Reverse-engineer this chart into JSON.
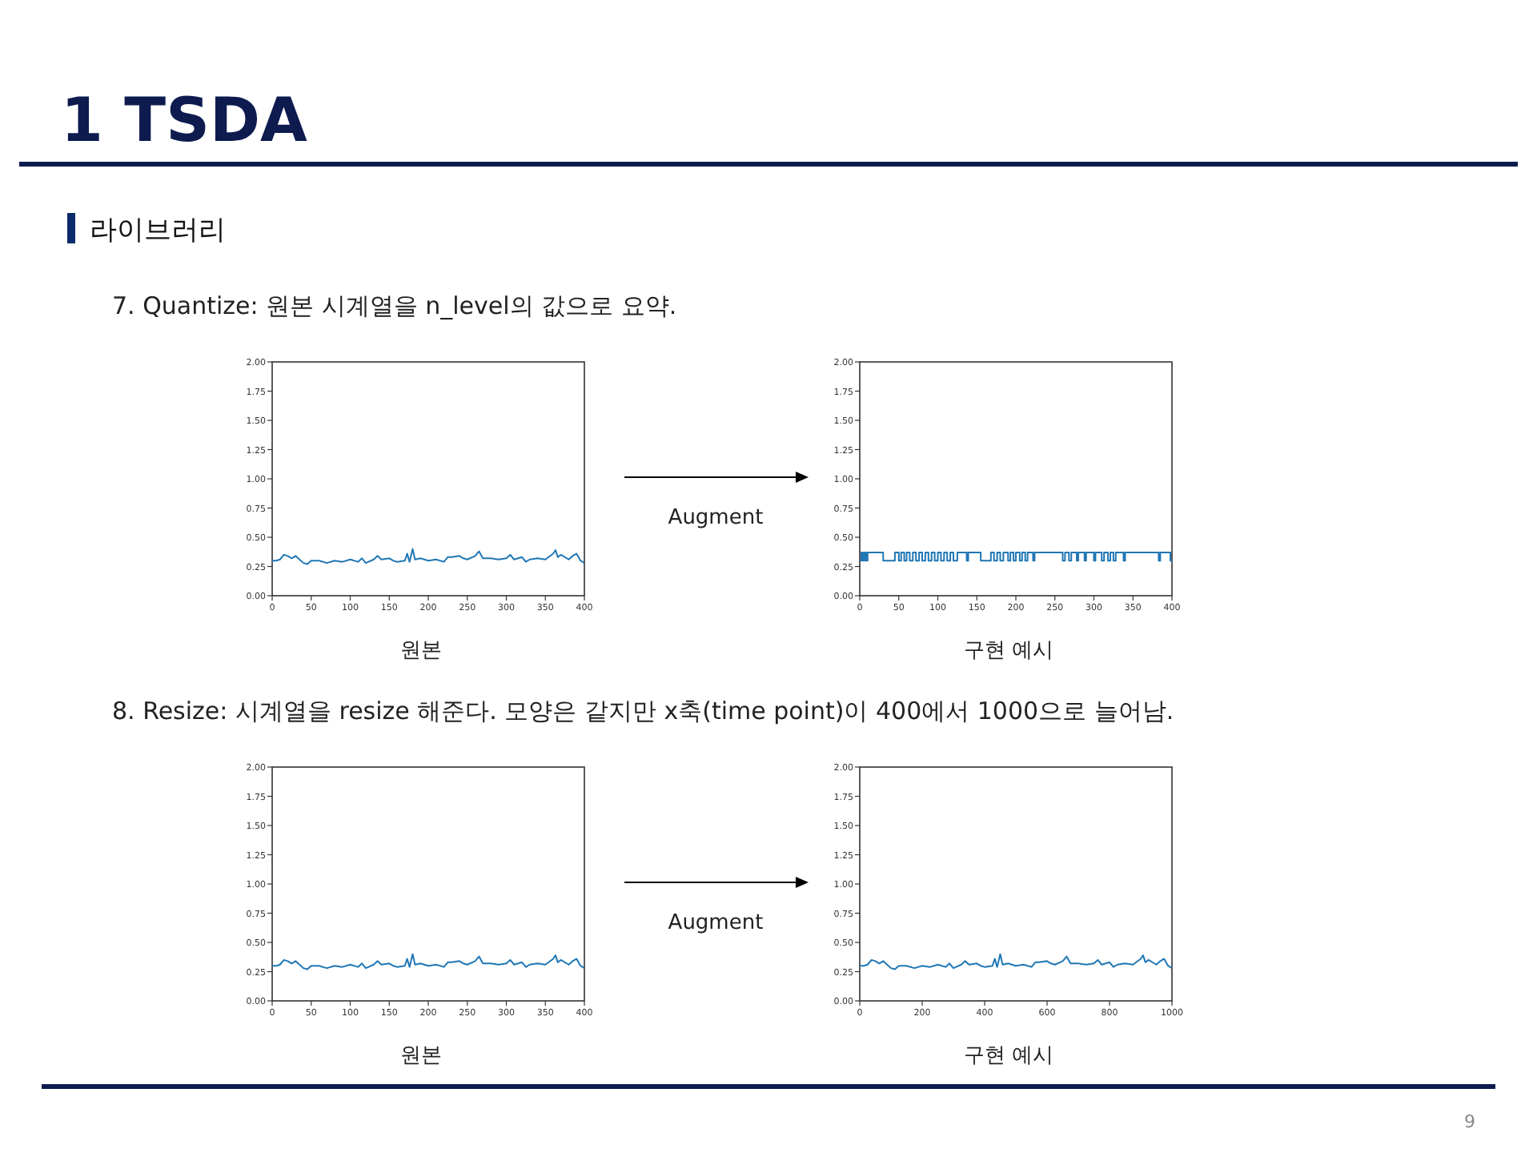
{
  "chart_data": [
    {
      "type": "line",
      "title": "1 TSDA",
      "subtitle": "라이브러리",
      "annotations": [
        "7. Quantize: 원본 시계열을 n_level의 값으로 요약."
      ],
      "xlabel": "원본",
      "x": [
        0,
        5,
        10,
        15,
        20,
        25,
        30,
        35,
        40,
        45,
        50,
        60,
        70,
        80,
        90,
        100,
        110,
        115,
        120,
        130,
        135,
        140,
        150,
        155,
        160,
        170,
        173,
        176,
        180,
        183,
        190,
        200,
        210,
        220,
        225,
        230,
        240,
        245,
        250,
        260,
        265,
        270,
        280,
        290,
        300,
        305,
        310,
        320,
        325,
        330,
        340,
        350,
        360,
        363,
        366,
        370,
        380,
        385,
        390,
        395,
        400
      ],
      "series": [
        {
          "color": "#1f77b4",
          "values": [
            0.3,
            0.3,
            0.31,
            0.35,
            0.34,
            0.32,
            0.34,
            0.31,
            0.28,
            0.27,
            0.3,
            0.3,
            0.28,
            0.3,
            0.29,
            0.31,
            0.29,
            0.32,
            0.28,
            0.31,
            0.34,
            0.31,
            0.32,
            0.3,
            0.29,
            0.3,
            0.36,
            0.29,
            0.4,
            0.31,
            0.32,
            0.3,
            0.31,
            0.29,
            0.33,
            0.33,
            0.34,
            0.32,
            0.31,
            0.34,
            0.38,
            0.32,
            0.32,
            0.31,
            0.32,
            0.35,
            0.31,
            0.33,
            0.29,
            0.31,
            0.32,
            0.31,
            0.36,
            0.39,
            0.33,
            0.35,
            0.31,
            0.34,
            0.36,
            0.3,
            0.28
          ]
        }
      ],
      "xlim": [
        0,
        400
      ],
      "xticks": [
        0,
        50,
        100,
        150,
        200,
        250,
        300,
        350,
        400
      ],
      "ylim": [
        0,
        2
      ],
      "yticks": [
        {
          "value": 0,
          "label": "0.00"
        },
        {
          "value": 0.25,
          "label": "0.25"
        },
        {
          "value": 0.5,
          "label": "0.50"
        },
        {
          "value": 0.75,
          "label": "0.75"
        },
        {
          "value": 1,
          "label": "1.00"
        },
        {
          "value": 1.25,
          "label": "1.25"
        },
        {
          "value": 1.5,
          "label": "1.50"
        },
        {
          "value": 1.75,
          "label": "1.75"
        },
        {
          "value": 2,
          "label": "2.00"
        }
      ]
    },
    {
      "type": "step",
      "annotations": [
        "Augment"
      ],
      "xlabel": "구현 예시",
      "x": [
        0,
        2,
        4,
        6,
        8,
        10,
        30,
        45,
        50,
        53,
        57,
        60,
        64,
        68,
        72,
        76,
        80,
        84,
        88,
        92,
        96,
        100,
        104,
        108,
        112,
        116,
        120,
        125,
        137,
        139,
        155,
        168,
        172,
        176,
        180,
        184,
        190,
        193,
        197,
        200,
        205,
        208,
        212,
        215,
        222,
        224,
        260,
        263,
        268,
        271,
        278,
        280,
        288,
        290,
        300,
        302,
        310,
        313,
        318,
        321,
        325,
        328,
        338,
        340,
        383,
        385,
        398,
        400
      ],
      "series": [
        {
          "color": "#1f77b4",
          "values": [
            0.3,
            0.37,
            0.3,
            0.37,
            0.3,
            0.37,
            0.3,
            0.37,
            0.3,
            0.37,
            0.3,
            0.37,
            0.3,
            0.37,
            0.3,
            0.37,
            0.3,
            0.37,
            0.3,
            0.37,
            0.3,
            0.37,
            0.3,
            0.37,
            0.3,
            0.37,
            0.3,
            0.37,
            0.3,
            0.37,
            0.3,
            0.37,
            0.3,
            0.37,
            0.3,
            0.37,
            0.3,
            0.37,
            0.3,
            0.37,
            0.3,
            0.37,
            0.3,
            0.37,
            0.3,
            0.37,
            0.3,
            0.37,
            0.3,
            0.37,
            0.3,
            0.37,
            0.3,
            0.37,
            0.3,
            0.37,
            0.3,
            0.37,
            0.3,
            0.37,
            0.3,
            0.37,
            0.3,
            0.37,
            0.3,
            0.37,
            0.3,
            0.3
          ]
        }
      ],
      "xlim": [
        0,
        400
      ],
      "xticks": [
        0,
        50,
        100,
        150,
        200,
        250,
        300,
        350,
        400
      ],
      "ylim": [
        0,
        2
      ],
      "yticks": [
        {
          "value": 0,
          "label": "0.00"
        },
        {
          "value": 0.25,
          "label": "0.25"
        },
        {
          "value": 0.5,
          "label": "0.50"
        },
        {
          "value": 0.75,
          "label": "0.75"
        },
        {
          "value": 1,
          "label": "1.00"
        },
        {
          "value": 1.25,
          "label": "1.25"
        },
        {
          "value": 1.5,
          "label": "1.50"
        },
        {
          "value": 1.75,
          "label": "1.75"
        },
        {
          "value": 2,
          "label": "2.00"
        }
      ]
    },
    {
      "type": "line",
      "annotations": [
        "8. Resize: 시계열을 resize 해준다. 모양은 같지만 x축(time point)이 400에서 1000으로 늘어남."
      ],
      "xlabel": "원본",
      "x": [
        0,
        5,
        10,
        15,
        20,
        25,
        30,
        35,
        40,
        45,
        50,
        60,
        70,
        80,
        90,
        100,
        110,
        115,
        120,
        130,
        135,
        140,
        150,
        155,
        160,
        170,
        173,
        176,
        180,
        183,
        190,
        200,
        210,
        220,
        225,
        230,
        240,
        245,
        250,
        260,
        265,
        270,
        280,
        290,
        300,
        305,
        310,
        320,
        325,
        330,
        340,
        350,
        360,
        363,
        366,
        370,
        380,
        385,
        390,
        395,
        400
      ],
      "series": [
        {
          "color": "#1f77b4",
          "values": [
            0.3,
            0.3,
            0.31,
            0.35,
            0.34,
            0.32,
            0.34,
            0.31,
            0.28,
            0.27,
            0.3,
            0.3,
            0.28,
            0.3,
            0.29,
            0.31,
            0.29,
            0.32,
            0.28,
            0.31,
            0.34,
            0.31,
            0.32,
            0.3,
            0.29,
            0.3,
            0.36,
            0.29,
            0.4,
            0.31,
            0.32,
            0.3,
            0.31,
            0.29,
            0.33,
            0.33,
            0.34,
            0.32,
            0.31,
            0.34,
            0.38,
            0.32,
            0.32,
            0.31,
            0.32,
            0.35,
            0.31,
            0.33,
            0.29,
            0.31,
            0.32,
            0.31,
            0.36,
            0.39,
            0.33,
            0.35,
            0.31,
            0.34,
            0.36,
            0.3,
            0.28
          ]
        }
      ],
      "xlim": [
        0,
        400
      ],
      "xticks": [
        0,
        50,
        100,
        150,
        200,
        250,
        300,
        350,
        400
      ],
      "ylim": [
        0,
        2
      ],
      "yticks": [
        {
          "value": 0,
          "label": "0.00"
        },
        {
          "value": 0.25,
          "label": "0.25"
        },
        {
          "value": 0.5,
          "label": "0.50"
        },
        {
          "value": 0.75,
          "label": "0.75"
        },
        {
          "value": 1,
          "label": "1.00"
        },
        {
          "value": 1.25,
          "label": "1.25"
        },
        {
          "value": 1.5,
          "label": "1.50"
        },
        {
          "value": 1.75,
          "label": "1.75"
        },
        {
          "value": 2,
          "label": "2.00"
        }
      ]
    },
    {
      "type": "line",
      "annotations": [
        "Augment",
        "9"
      ],
      "xlabel": "구현 예시",
      "x": [
        0,
        12.5,
        25,
        37.5,
        50,
        62.5,
        75,
        87.5,
        100,
        112.5,
        125,
        150,
        175,
        200,
        225,
        250,
        275,
        287.5,
        300,
        325,
        337.5,
        350,
        375,
        387.5,
        400,
        425,
        432.5,
        440,
        450,
        457.5,
        475,
        500,
        525,
        550,
        562.5,
        575,
        600,
        612.5,
        625,
        650,
        662.5,
        675,
        700,
        725,
        750,
        762.5,
        775,
        800,
        812.5,
        825,
        850,
        875,
        900,
        907.5,
        915,
        925,
        950,
        962.5,
        975,
        987.5,
        1000
      ],
      "series": [
        {
          "color": "#1f77b4",
          "values": [
            0.3,
            0.3,
            0.31,
            0.35,
            0.34,
            0.32,
            0.34,
            0.31,
            0.28,
            0.27,
            0.3,
            0.3,
            0.28,
            0.3,
            0.29,
            0.31,
            0.29,
            0.32,
            0.28,
            0.31,
            0.34,
            0.31,
            0.32,
            0.3,
            0.29,
            0.3,
            0.36,
            0.29,
            0.4,
            0.31,
            0.32,
            0.3,
            0.31,
            0.29,
            0.33,
            0.33,
            0.34,
            0.32,
            0.31,
            0.34,
            0.38,
            0.32,
            0.32,
            0.31,
            0.32,
            0.35,
            0.31,
            0.33,
            0.29,
            0.31,
            0.32,
            0.31,
            0.36,
            0.39,
            0.33,
            0.35,
            0.31,
            0.34,
            0.36,
            0.3,
            0.28
          ]
        }
      ],
      "xlim": [
        0,
        1000
      ],
      "xticks": [
        0,
        200,
        400,
        600,
        800,
        1000
      ],
      "ylim": [
        0,
        2
      ],
      "yticks": [
        {
          "value": 0,
          "label": "0.00"
        },
        {
          "value": 0.25,
          "label": "0.25"
        },
        {
          "value": 0.5,
          "label": "0.50"
        },
        {
          "value": 0.75,
          "label": "0.75"
        },
        {
          "value": 1,
          "label": "1.00"
        },
        {
          "value": 1.25,
          "label": "1.25"
        },
        {
          "value": 1.5,
          "label": "1.50"
        },
        {
          "value": 1.75,
          "label": "1.75"
        },
        {
          "value": 2,
          "label": "2.00"
        }
      ]
    }
  ]
}
